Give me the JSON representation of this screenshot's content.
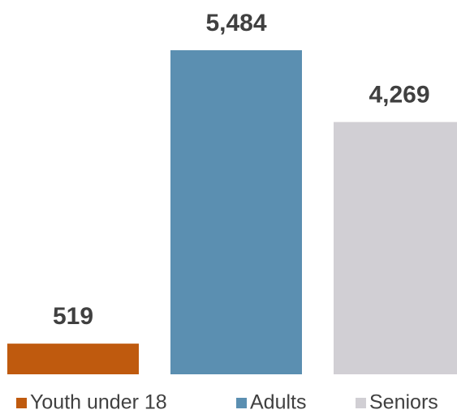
{
  "chart_data": {
    "type": "bar",
    "series": [
      {
        "name": "Youth under 18",
        "color": "#bf5a0e",
        "values": [
          519
        ],
        "value_labels": [
          "519"
        ]
      },
      {
        "name": "Adults",
        "color": "#5b8fb1",
        "values": [
          5484
        ],
        "value_labels": [
          "5,484"
        ]
      },
      {
        "name": "Seniors",
        "color": "#d1cfd4",
        "values": [
          4269
        ],
        "value_labels": [
          "4,269"
        ]
      }
    ],
    "legend": "bottom"
  }
}
